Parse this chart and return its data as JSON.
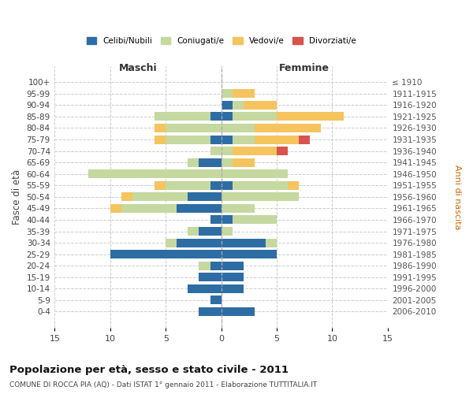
{
  "age_groups": [
    "100+",
    "95-99",
    "90-94",
    "85-89",
    "80-84",
    "75-79",
    "70-74",
    "65-69",
    "60-64",
    "55-59",
    "50-54",
    "45-49",
    "40-44",
    "35-39",
    "30-34",
    "25-29",
    "20-24",
    "15-19",
    "10-14",
    "5-9",
    "0-4"
  ],
  "birth_years": [
    "≤ 1910",
    "1911-1915",
    "1916-1920",
    "1921-1925",
    "1926-1930",
    "1931-1935",
    "1936-1940",
    "1941-1945",
    "1946-1950",
    "1951-1955",
    "1956-1960",
    "1961-1965",
    "1966-1970",
    "1971-1975",
    "1976-1980",
    "1981-1985",
    "1986-1990",
    "1991-1995",
    "1996-2000",
    "2001-2005",
    "2006-2010"
  ],
  "males": {
    "celibi": [
      0,
      0,
      0,
      1,
      0,
      1,
      0,
      2,
      0,
      1,
      3,
      4,
      1,
      2,
      4,
      10,
      1,
      2,
      3,
      1,
      2
    ],
    "coniugati": [
      0,
      0,
      0,
      5,
      5,
      4,
      1,
      1,
      12,
      4,
      5,
      5,
      0,
      1,
      1,
      0,
      1,
      0,
      0,
      0,
      0
    ],
    "vedovi": [
      0,
      0,
      0,
      0,
      1,
      1,
      0,
      0,
      0,
      1,
      1,
      1,
      0,
      0,
      0,
      0,
      0,
      0,
      0,
      0,
      0
    ],
    "divorziati": [
      0,
      0,
      0,
      0,
      0,
      0,
      0,
      0,
      0,
      0,
      0,
      0,
      0,
      0,
      0,
      0,
      0,
      0,
      0,
      0,
      0
    ]
  },
  "females": {
    "nubili": [
      0,
      0,
      1,
      1,
      0,
      1,
      0,
      0,
      0,
      1,
      0,
      0,
      1,
      0,
      4,
      5,
      2,
      2,
      2,
      0,
      3
    ],
    "coniugate": [
      0,
      1,
      1,
      4,
      3,
      2,
      1,
      1,
      6,
      5,
      7,
      3,
      4,
      1,
      1,
      0,
      0,
      0,
      0,
      0,
      0
    ],
    "vedove": [
      0,
      2,
      3,
      6,
      6,
      4,
      4,
      2,
      0,
      1,
      0,
      0,
      0,
      0,
      0,
      0,
      0,
      0,
      0,
      0,
      0
    ],
    "divorziate": [
      0,
      0,
      0,
      0,
      0,
      1,
      1,
      0,
      0,
      0,
      0,
      0,
      0,
      0,
      0,
      0,
      0,
      0,
      0,
      0,
      0
    ]
  },
  "colors": {
    "celibi_nubili": "#2E6DA4",
    "coniugati": "#C5D8A0",
    "vedovi": "#F5C45E",
    "divorziati": "#D9534F"
  },
  "xlim": 15,
  "title": "Popolazione per età, sesso e stato civile - 2011",
  "subtitle": "COMUNE DI ROCCA PIA (AQ) - Dati ISTAT 1° gennaio 2011 - Elaborazione TUTTITALIA.IT",
  "ylabel_left": "Fasce di età",
  "ylabel_right": "Anni di nascita",
  "xlabel_left": "Maschi",
  "xlabel_right": "Femmine"
}
